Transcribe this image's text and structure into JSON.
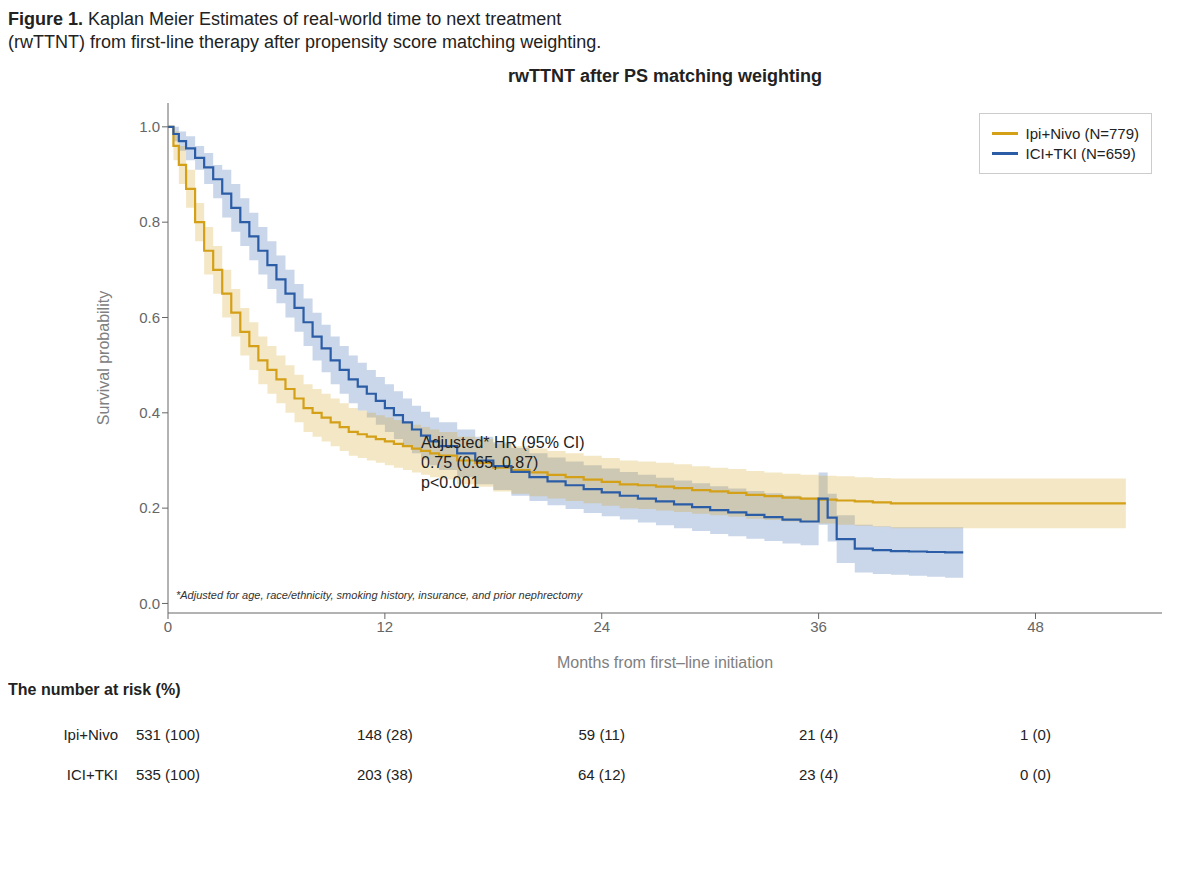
{
  "chart_data": {
    "type": "step",
    "figure_title": {
      "bold": "Figure 1.",
      "text": " Kaplan Meier Estimates of real-world time to next treatment\n(rwTTNT) from first-line therapy after propensity score matching weighting."
    },
    "title": "rwTTNT after PS matching weighting",
    "x_label": "Months from first–line initiation",
    "y_label": "Survival probability",
    "xlim": [
      0,
      55
    ],
    "ylim": [
      -0.02,
      1.05
    ],
    "xticks": [
      0,
      12,
      24,
      36,
      48
    ],
    "yticks": [
      {
        "value": 0.0,
        "label": "0.0"
      },
      0.2,
      0.4,
      0.6,
      0.8,
      {
        "value": 1.0,
        "label": "1.0"
      }
    ],
    "grid": false,
    "legend": "upper right",
    "annotations": [
      {
        "text": "Adjusted* HR (95% CI)\n0.75 (0.65, 0.87)\np<0.001",
        "x": 14,
        "y": 0.36
      }
    ],
    "footnote": "*Adjusted for age, race/ethnicity, smoking history, insurance, and prior nephrectomy",
    "series": [
      {
        "name": "Ipi+Nivo (N=779)",
        "color": "#D4A017",
        "x": [
          0.0,
          0.3,
          0.6,
          1.0,
          1.5,
          2.0,
          2.5,
          3.0,
          3.5,
          4.0,
          4.5,
          5.0,
          5.5,
          6.0,
          6.5,
          7.0,
          7.5,
          8.0,
          8.5,
          9.0,
          9.5,
          10.0,
          10.5,
          11.0,
          11.5,
          12.0,
          12.5,
          13.0,
          13.5,
          14.0,
          14.5,
          15.0,
          16.0,
          17.0,
          18.0,
          19.0,
          20.0,
          21.0,
          22.0,
          23.0,
          24.0,
          25.0,
          26.0,
          27.0,
          28.0,
          29.0,
          30.0,
          31.0,
          32.0,
          33.0,
          34.0,
          35.0,
          36.0,
          37.0,
          38.0,
          39.0,
          40.0,
          41.0,
          42.0,
          43.0,
          44.0,
          45.0,
          46.0,
          47.0,
          48.0,
          49.0,
          50.0,
          51.0,
          52.0,
          53.0
        ],
        "values": [
          1.0,
          0.96,
          0.92,
          0.87,
          0.8,
          0.74,
          0.7,
          0.65,
          0.61,
          0.57,
          0.54,
          0.51,
          0.49,
          0.47,
          0.45,
          0.43,
          0.41,
          0.4,
          0.39,
          0.38,
          0.37,
          0.36,
          0.355,
          0.35,
          0.345,
          0.34,
          0.335,
          0.33,
          0.325,
          0.32,
          0.315,
          0.31,
          0.3,
          0.295,
          0.285,
          0.28,
          0.275,
          0.27,
          0.265,
          0.26,
          0.255,
          0.25,
          0.248,
          0.245,
          0.242,
          0.238,
          0.235,
          0.232,
          0.228,
          0.225,
          0.222,
          0.22,
          0.218,
          0.216,
          0.214,
          0.212,
          0.21,
          0.21,
          0.21,
          0.21,
          0.21,
          0.21,
          0.21,
          0.21,
          0.21,
          0.21,
          0.21,
          0.21,
          0.21,
          0.21
        ],
        "ci_lower": [
          1.0,
          0.93,
          0.88,
          0.83,
          0.76,
          0.69,
          0.65,
          0.6,
          0.56,
          0.52,
          0.49,
          0.46,
          0.44,
          0.42,
          0.4,
          0.38,
          0.36,
          0.35,
          0.34,
          0.33,
          0.32,
          0.31,
          0.305,
          0.3,
          0.295,
          0.29,
          0.285,
          0.28,
          0.275,
          0.27,
          0.265,
          0.26,
          0.25,
          0.245,
          0.235,
          0.23,
          0.225,
          0.22,
          0.215,
          0.21,
          0.205,
          0.2,
          0.198,
          0.195,
          0.192,
          0.188,
          0.185,
          0.182,
          0.178,
          0.175,
          0.172,
          0.17,
          0.168,
          0.165,
          0.163,
          0.161,
          0.158,
          0.158,
          0.158,
          0.158,
          0.158,
          0.158,
          0.158,
          0.158,
          0.158,
          0.158,
          0.158,
          0.158,
          0.158,
          0.158
        ],
        "ci_upper": [
          1.0,
          0.99,
          0.96,
          0.91,
          0.84,
          0.79,
          0.75,
          0.7,
          0.66,
          0.62,
          0.59,
          0.56,
          0.54,
          0.52,
          0.5,
          0.48,
          0.46,
          0.45,
          0.44,
          0.43,
          0.42,
          0.41,
          0.405,
          0.4,
          0.395,
          0.39,
          0.385,
          0.38,
          0.375,
          0.37,
          0.365,
          0.36,
          0.35,
          0.345,
          0.335,
          0.33,
          0.325,
          0.32,
          0.315,
          0.31,
          0.305,
          0.3,
          0.298,
          0.295,
          0.292,
          0.288,
          0.285,
          0.282,
          0.278,
          0.275,
          0.272,
          0.27,
          0.268,
          0.267,
          0.265,
          0.263,
          0.262,
          0.262,
          0.262,
          0.262,
          0.262,
          0.262,
          0.262,
          0.262,
          0.262,
          0.262,
          0.262,
          0.262,
          0.262,
          0.262
        ]
      },
      {
        "name": "ICI+TKI (N=659)",
        "color": "#2B5CA6",
        "x": [
          0.0,
          0.3,
          0.6,
          1.0,
          1.5,
          2.0,
          2.5,
          3.0,
          3.5,
          4.0,
          4.5,
          5.0,
          5.5,
          6.0,
          6.5,
          7.0,
          7.5,
          8.0,
          8.5,
          9.0,
          9.5,
          10.0,
          10.5,
          11.0,
          11.5,
          12.0,
          12.5,
          13.0,
          13.5,
          14.0,
          14.5,
          15.0,
          16.0,
          17.0,
          18.0,
          19.0,
          20.0,
          21.0,
          22.0,
          23.0,
          24.0,
          25.0,
          26.0,
          27.0,
          28.0,
          29.0,
          30.0,
          31.0,
          32.0,
          33.0,
          34.0,
          35.0,
          36.0,
          36.5,
          37.0,
          38.0,
          39.0,
          40.0,
          41.0,
          42.0,
          43.0,
          44.0
        ],
        "values": [
          1.0,
          0.985,
          0.97,
          0.955,
          0.935,
          0.915,
          0.89,
          0.86,
          0.83,
          0.8,
          0.77,
          0.74,
          0.71,
          0.68,
          0.65,
          0.62,
          0.59,
          0.56,
          0.535,
          0.51,
          0.49,
          0.47,
          0.455,
          0.44,
          0.425,
          0.41,
          0.395,
          0.38,
          0.365,
          0.352,
          0.34,
          0.33,
          0.315,
          0.3,
          0.288,
          0.276,
          0.265,
          0.256,
          0.248,
          0.24,
          0.233,
          0.226,
          0.22,
          0.214,
          0.208,
          0.202,
          0.196,
          0.191,
          0.186,
          0.181,
          0.176,
          0.172,
          0.22,
          0.18,
          0.135,
          0.115,
          0.112,
          0.11,
          0.109,
          0.108,
          0.107,
          0.107
        ],
        "ci_lower": [
          1.0,
          0.97,
          0.95,
          0.93,
          0.91,
          0.88,
          0.85,
          0.81,
          0.78,
          0.75,
          0.72,
          0.69,
          0.66,
          0.63,
          0.6,
          0.57,
          0.54,
          0.51,
          0.485,
          0.46,
          0.44,
          0.42,
          0.405,
          0.39,
          0.375,
          0.36,
          0.345,
          0.33,
          0.315,
          0.302,
          0.29,
          0.28,
          0.265,
          0.25,
          0.238,
          0.226,
          0.215,
          0.206,
          0.198,
          0.19,
          0.183,
          0.176,
          0.17,
          0.164,
          0.158,
          0.152,
          0.146,
          0.141,
          0.136,
          0.131,
          0.126,
          0.122,
          0.165,
          0.13,
          0.085,
          0.065,
          0.062,
          0.06,
          0.058,
          0.056,
          0.054,
          0.054
        ],
        "ci_upper": [
          1.0,
          1.0,
          0.99,
          0.98,
          0.96,
          0.945,
          0.92,
          0.91,
          0.88,
          0.85,
          0.82,
          0.79,
          0.76,
          0.73,
          0.7,
          0.67,
          0.64,
          0.61,
          0.585,
          0.56,
          0.54,
          0.52,
          0.505,
          0.49,
          0.475,
          0.46,
          0.445,
          0.43,
          0.415,
          0.402,
          0.39,
          0.38,
          0.365,
          0.35,
          0.338,
          0.326,
          0.315,
          0.306,
          0.298,
          0.29,
          0.283,
          0.276,
          0.27,
          0.264,
          0.258,
          0.252,
          0.246,
          0.241,
          0.236,
          0.231,
          0.226,
          0.222,
          0.275,
          0.23,
          0.185,
          0.165,
          0.162,
          0.16,
          0.16,
          0.16,
          0.16,
          0.16
        ]
      }
    ],
    "risk_table": {
      "title": "The number at risk (%)",
      "times": [
        0,
        12,
        24,
        36,
        48
      ],
      "rows": [
        {
          "name": "Ipi+Nivo",
          "values": [
            "531 (100)",
            "148 (28)",
            "59 (11)",
            "21 (4)",
            "1 (0)"
          ]
        },
        {
          "name": "ICI+TKI",
          "values": [
            "535 (100)",
            "203 (38)",
            "64 (12)",
            "23 (4)",
            "0 (0)"
          ]
        }
      ]
    }
  }
}
